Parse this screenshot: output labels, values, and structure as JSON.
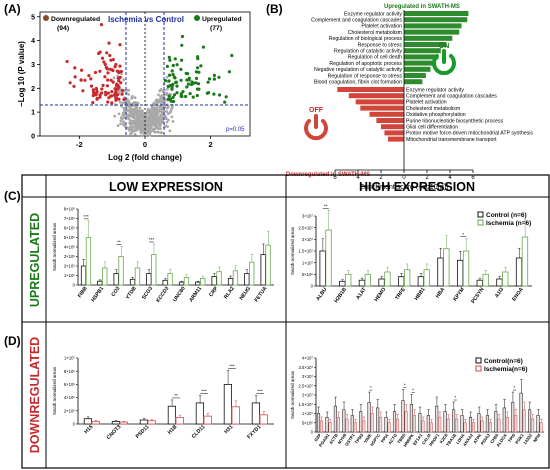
{
  "panels": {
    "A": {
      "letter": "(A)"
    },
    "B": {
      "letter": "(B)"
    },
    "C": {
      "letter": "(C)"
    },
    "D": {
      "letter": "(D)"
    }
  },
  "section_titles": {
    "low": "LOW EXPRESSION",
    "high": "HIGH EXPRESSION",
    "up": "UPREGULATED",
    "down": "DOWNREGULATED"
  },
  "colors": {
    "up_green": "#1a7a1a",
    "down_red": "#c8292d",
    "neutral_gray": "#a9a9a9",
    "threshold_blue": "#1f2f9f",
    "ctrl_black": "#111111",
    "bar_green": "#6aa84f",
    "bar_red": "#d24a4a"
  },
  "chart_data": [
    {
      "type": "scatter",
      "panel": "A",
      "title": "Ischemia vs Control",
      "xlabel": "Log 2 (fold change)",
      "ylabel": "−Log 10 (P value)",
      "xticks": [
        "-2",
        "0",
        "2"
      ],
      "yticks": [
        "0",
        "1",
        "2",
        "3",
        "4",
        "5"
      ],
      "xlim": [
        -3.2,
        3.2
      ],
      "ylim": [
        0,
        5.2
      ],
      "legend": {
        "down_label": "Downregulated",
        "down_count": "(94)",
        "up_label": "Upregulated",
        "up_count": "(77)"
      },
      "p_threshold_label": "p=0.05",
      "p_threshold": 1.3,
      "fc_thresholds": [
        -0.58,
        0.58
      ],
      "series": [
        {
          "name": "Downregulated",
          "n": 94
        },
        {
          "name": "Upregulated",
          "n": 77
        }
      ]
    },
    {
      "type": "bar",
      "panel": "B",
      "orientation": "horizontal",
      "xlabel": "Enrichment score (-log10(p))",
      "xticks": [
        "6",
        "4",
        "2",
        "0",
        "2",
        "4",
        "6"
      ],
      "xlim": [
        -6,
        6
      ],
      "up_title": "Upregulated in SWATH-MS",
      "down_title": "Downregulated in SWATH-MS",
      "up_icon_label": "ON",
      "down_icon_label": "OFF",
      "up_categories": [
        "Enzyme regulator activity",
        "Complement and coagulation cascades",
        "Platelet activation",
        "Cholesterol metabolism",
        "Regulation of biological process",
        "Response to stress",
        "Regulation of catalytic activity",
        "Regulation of cell death",
        "Regulation of apoptotic process",
        "Negative regulation of catalytic activity",
        "Regulation of response to stress",
        "Blood coagulation, fibrin clot formation"
      ],
      "up_values": [
        5.6,
        5.5,
        5.0,
        4.8,
        4.2,
        3.7,
        3.2,
        3.0,
        2.6,
        2.3,
        1.9,
        1.6
      ],
      "down_categories": [
        "Enzyme regulator activity",
        "Complement and coagulation cascades",
        "Platelet activation",
        "Cholesterol metabolism",
        "Oxidative phosphorylation",
        "Purine ribonucleotide biosynthetic process",
        "Glial cell differentiation",
        "Proton motive force-driven mitochondrial ATP synthesis",
        "Mitochondrial transmembrane transport"
      ],
      "down_values": [
        5.8,
        4.8,
        4.2,
        3.8,
        3.0,
        2.4,
        2.0,
        1.7,
        1.4
      ]
    },
    {
      "type": "bar",
      "panel": "C-low",
      "ylabel": "Swath normalized areas",
      "yticks": [
        "0",
        "1×10⁶",
        "2×10⁶",
        "3×10⁶",
        "4×10⁶",
        "5×10⁶",
        "6×10⁶",
        "7×10⁶",
        "8×10⁶"
      ],
      "ylim": [
        0,
        8000000
      ],
      "categories": [
        "FIBB",
        "HSPB1",
        "CO3",
        "YTDB",
        "SCG3",
        "KCCD3",
        "UNC80",
        "ARM11",
        "CRP",
        "RLA2",
        "NEUG",
        "FETUA"
      ],
      "series": [
        {
          "name": "Control",
          "values": [
            2000000,
            400000,
            1200000,
            600000,
            1200000,
            500000,
            300000,
            300000,
            900000,
            700000,
            1200000,
            3200000
          ]
        },
        {
          "name": "Ischemia",
          "values": [
            5000000,
            1800000,
            3000000,
            1800000,
            3200000,
            1200000,
            800000,
            700000,
            1400000,
            1500000,
            2400000,
            4200000
          ]
        }
      ],
      "significance": [
        {
          "category": "FIBB",
          "label": "***"
        },
        {
          "category": "CO3",
          "label": "**"
        },
        {
          "category": "SCG3",
          "label": "***"
        }
      ]
    },
    {
      "type": "bar",
      "panel": "C-high",
      "ylabel": "Swath normalized areas",
      "yticks": [
        "0",
        "5×10⁶",
        "1×10⁷",
        "1.5×10⁷",
        "2×10⁷",
        "2.5×10⁷",
        "3×10⁷"
      ],
      "ylim": [
        0,
        30000000
      ],
      "legend": [
        "Control (n=6)",
        "Ischemia (n=6)"
      ],
      "categories": [
        "ALBU",
        "H2B1B",
        "A1AT",
        "HEMO",
        "TRFE",
        "HBB1",
        "HBA",
        "KPYM",
        "PCSYN",
        "A1I3",
        "ENOA"
      ],
      "series": [
        {
          "name": "Control (n=6)",
          "values": [
            15000000,
            2000000,
            2500000,
            3000000,
            4000000,
            4000000,
            12000000,
            11000000,
            2500000,
            3000000,
            12000000
          ]
        },
        {
          "name": "Ischemia (n=6)",
          "values": [
            24000000,
            5000000,
            5000000,
            6000000,
            7000000,
            7000000,
            16000000,
            15000000,
            5000000,
            6000000,
            21000000
          ]
        }
      ],
      "significance": [
        {
          "category": "ALBU",
          "label": "**"
        },
        {
          "category": "KPYM",
          "label": "*"
        }
      ]
    },
    {
      "type": "bar",
      "panel": "D-low",
      "ylabel": "Swath normalized areas",
      "yticks": [
        "0",
        "2×10⁶",
        "4×10⁶",
        "6×10⁶",
        "8×10⁶",
        "1×10⁷"
      ],
      "ylim": [
        0,
        10000000
      ],
      "categories": [
        "H15",
        "CNOT3",
        "PSD11",
        "H1B",
        "CLD11",
        "H31",
        "FXYD1"
      ],
      "series": [
        {
          "name": "Control",
          "values": [
            800000,
            400000,
            600000,
            2700000,
            3200000,
            6000000,
            3200000
          ]
        },
        {
          "name": "Ischemia",
          "values": [
            400000,
            300000,
            500000,
            1000000,
            1200000,
            2600000,
            1400000
          ]
        }
      ],
      "significance": [
        {
          "category": "H1B",
          "label": "**"
        },
        {
          "category": "CLD11",
          "label": "***"
        },
        {
          "category": "H31",
          "label": "***"
        },
        {
          "category": "FXYD1",
          "label": "***"
        }
      ]
    },
    {
      "type": "bar",
      "panel": "D-high",
      "ylabel": "Swath normalized areas",
      "yticks": [
        "0",
        "5×10⁶",
        "1×10⁷",
        "1.5×10⁷",
        "2×10⁷",
        "2.5×10⁷",
        "3×10⁷",
        "3.5×10⁷",
        "4×10⁷"
      ],
      "ylim": [
        0,
        40000000
      ],
      "legend": [
        "Control(n=6)",
        "Ischemia(n=6)"
      ],
      "categories": [
        "G3P",
        "PGAM1",
        "ACTB",
        "MYH9",
        "GSTP1",
        "TPM3",
        "VIME",
        "HSP7C",
        "PPIA",
        "ACTG",
        "TBB5",
        "HNRPK",
        "EF1A1",
        "CALM",
        "PROF1",
        "K2C8",
        "TBA1B",
        "LDHA",
        "ANXA2",
        "ATPA",
        "PDIA3",
        "CH60",
        "ALDOA",
        "TPIS",
        "PGK1",
        "1433Z",
        "NPM"
      ],
      "series": [
        {
          "name": "Control(n=6)",
          "values": [
            10000000,
            8000000,
            14000000,
            12000000,
            9000000,
            11000000,
            16000000,
            13000000,
            8000000,
            11000000,
            17000000,
            15000000,
            10000000,
            9000000,
            14000000,
            11000000,
            12000000,
            9000000,
            8000000,
            10000000,
            9000000,
            11000000,
            13000000,
            16000000,
            21000000,
            12000000,
            9000000
          ]
        },
        {
          "name": "Ischemia(n=6)",
          "values": [
            6000000,
            5000000,
            8000000,
            7000000,
            5000000,
            6000000,
            10000000,
            8000000,
            5000000,
            7000000,
            11000000,
            9000000,
            6000000,
            5000000,
            8000000,
            7000000,
            7000000,
            5000000,
            5000000,
            6000000,
            5000000,
            7000000,
            8000000,
            9000000,
            12000000,
            7000000,
            5000000
          ]
        }
      ],
      "significance": [
        {
          "category": "VIME",
          "label": "*"
        },
        {
          "category": "TBB5",
          "label": "*"
        },
        {
          "category": "HNRPK",
          "label": "*"
        },
        {
          "category": "TBA1B",
          "label": "*"
        },
        {
          "category": "TPIS",
          "label": "*"
        }
      ]
    }
  ]
}
